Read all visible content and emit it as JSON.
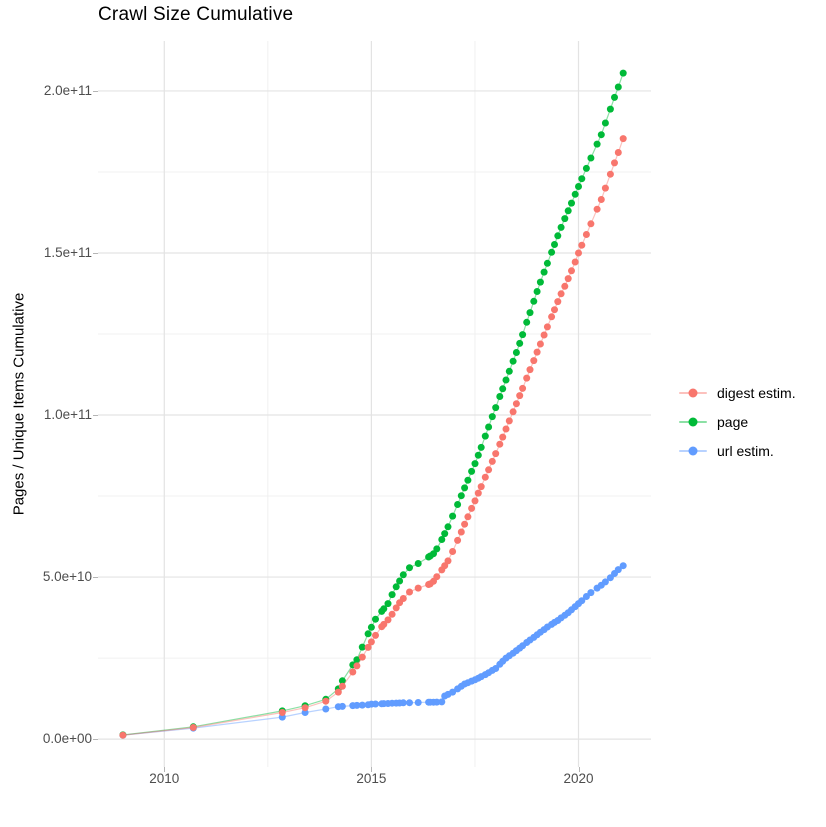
{
  "title": "Crawl Size Cumulative",
  "axes": {
    "y_title": "Pages / Unique Items Cumulative",
    "x_title": "",
    "x_ticks": [
      {
        "v": 2010,
        "label": "2010"
      },
      {
        "v": 2015,
        "label": "2015"
      },
      {
        "v": 2020,
        "label": "2020"
      }
    ],
    "x_minor": [
      2012.5,
      2017.5
    ],
    "y_ticks": [
      {
        "v": 0,
        "label": "0.0e+00"
      },
      {
        "v": 50,
        "label": "5.0e+10"
      },
      {
        "v": 100,
        "label": "1.0e+11"
      },
      {
        "v": 150,
        "label": "1.5e+11"
      },
      {
        "v": 200,
        "label": "2.0e+11"
      }
    ],
    "y_minor": [
      25,
      75,
      125,
      175
    ]
  },
  "colors": {
    "grid_major": "#e3e3e3",
    "grid_minor": "#f0f0f0",
    "tick": "#b5b5b5",
    "tick_text": "#4d4d4d",
    "text": "#000000"
  },
  "chart_data": {
    "type": "scatter",
    "connected": true,
    "title": "Crawl Size Cumulative",
    "xlabel": "",
    "ylabel": "Pages / Unique Items Cumulative",
    "grid": true,
    "legend_position": "right",
    "xlim": [
      2008.4,
      2021.75
    ],
    "ylim": [
      -8.6,
      215.4
    ],
    "y_unit": "1e9 (values below are billions; axis shows 0.0e+00 to 2.0e+11)",
    "series": [
      {
        "name": "digest estim.",
        "color": "#F8766D",
        "points": [
          [
            2009.0,
            1.2
          ],
          [
            2010.7,
            3.6
          ],
          [
            2012.85,
            8.2
          ],
          [
            2013.4,
            9.7
          ],
          [
            2013.9,
            11.7
          ],
          [
            2014.2,
            14.5
          ],
          [
            2014.3,
            16.3
          ],
          [
            2014.55,
            20.7
          ],
          [
            2014.65,
            22.6
          ],
          [
            2014.78,
            25.3
          ],
          [
            2014.92,
            28.3
          ],
          [
            2015.0,
            30.0
          ],
          [
            2015.1,
            32.0
          ],
          [
            2015.25,
            34.7
          ],
          [
            2015.3,
            35.4
          ],
          [
            2015.4,
            36.8
          ],
          [
            2015.5,
            38.5
          ],
          [
            2015.6,
            40.5
          ],
          [
            2015.68,
            42.1
          ],
          [
            2015.77,
            43.4
          ],
          [
            2015.92,
            45.4
          ],
          [
            2016.13,
            46.6
          ],
          [
            2016.38,
            47.7
          ],
          [
            2016.42,
            47.9
          ],
          [
            2016.5,
            48.7
          ],
          [
            2016.58,
            50.1
          ],
          [
            2016.7,
            52.2
          ],
          [
            2016.77,
            53.5
          ],
          [
            2016.85,
            55.0
          ],
          [
            2016.96,
            57.9
          ],
          [
            2017.08,
            61.3
          ],
          [
            2017.17,
            63.9
          ],
          [
            2017.25,
            66.3
          ],
          [
            2017.33,
            68.6
          ],
          [
            2017.42,
            71.2
          ],
          [
            2017.5,
            73.5
          ],
          [
            2017.58,
            75.9
          ],
          [
            2017.65,
            77.9
          ],
          [
            2017.75,
            80.8
          ],
          [
            2017.83,
            83.1
          ],
          [
            2017.92,
            85.7
          ],
          [
            2018.0,
            88.1
          ],
          [
            2018.1,
            91.0
          ],
          [
            2018.17,
            93.2
          ],
          [
            2018.25,
            95.7
          ],
          [
            2018.33,
            98.2
          ],
          [
            2018.42,
            101.0
          ],
          [
            2018.5,
            103.5
          ],
          [
            2018.58,
            106.0
          ],
          [
            2018.65,
            108.2
          ],
          [
            2018.75,
            111.4
          ],
          [
            2018.83,
            114.0
          ],
          [
            2018.92,
            116.8
          ],
          [
            2019.0,
            119.4
          ],
          [
            2019.08,
            121.9
          ],
          [
            2019.17,
            124.7
          ],
          [
            2019.25,
            127.2
          ],
          [
            2019.35,
            130.3
          ],
          [
            2019.42,
            132.5
          ],
          [
            2019.5,
            135.0
          ],
          [
            2019.58,
            137.4
          ],
          [
            2019.67,
            139.7
          ],
          [
            2019.75,
            142.1
          ],
          [
            2019.83,
            144.5
          ],
          [
            2019.92,
            147.2
          ],
          [
            2020.0,
            150.0
          ],
          [
            2020.08,
            152.4
          ],
          [
            2020.19,
            155.7
          ],
          [
            2020.3,
            159.0
          ],
          [
            2020.45,
            163.5
          ],
          [
            2020.55,
            166.5
          ],
          [
            2020.65,
            170.0
          ],
          [
            2020.77,
            174.3
          ],
          [
            2020.87,
            177.8
          ],
          [
            2020.96,
            181.0
          ],
          [
            2021.08,
            185.3
          ]
        ]
      },
      {
        "name": "page",
        "color": "#00BA38",
        "points": [
          [
            2009.0,
            1.3
          ],
          [
            2010.7,
            3.8
          ],
          [
            2012.85,
            8.7
          ],
          [
            2013.4,
            10.3
          ],
          [
            2013.9,
            12.3
          ],
          [
            2014.2,
            15.5
          ],
          [
            2014.3,
            18.0
          ],
          [
            2014.55,
            22.9
          ],
          [
            2014.65,
            24.5
          ],
          [
            2014.78,
            28.4
          ],
          [
            2014.92,
            32.5
          ],
          [
            2015.0,
            34.5
          ],
          [
            2015.1,
            37.0
          ],
          [
            2015.25,
            39.4
          ],
          [
            2015.3,
            40.2
          ],
          [
            2015.4,
            41.8
          ],
          [
            2015.5,
            44.6
          ],
          [
            2015.6,
            47.0
          ],
          [
            2015.68,
            48.8
          ],
          [
            2015.77,
            50.7
          ],
          [
            2015.92,
            52.9
          ],
          [
            2016.13,
            54.2
          ],
          [
            2016.38,
            56.2
          ],
          [
            2016.42,
            56.5
          ],
          [
            2016.5,
            57.2
          ],
          [
            2016.58,
            58.7
          ],
          [
            2016.7,
            61.6
          ],
          [
            2016.77,
            63.4
          ],
          [
            2016.85,
            65.5
          ],
          [
            2016.96,
            68.8
          ],
          [
            2017.08,
            72.4
          ],
          [
            2017.17,
            75.1
          ],
          [
            2017.25,
            77.5
          ],
          [
            2017.33,
            79.9
          ],
          [
            2017.42,
            82.6
          ],
          [
            2017.5,
            85.0
          ],
          [
            2017.58,
            87.6
          ],
          [
            2017.65,
            90.0
          ],
          [
            2017.75,
            93.5
          ],
          [
            2017.83,
            96.3
          ],
          [
            2017.92,
            99.5
          ],
          [
            2018.0,
            102.3
          ],
          [
            2018.1,
            105.7
          ],
          [
            2018.17,
            108.1
          ],
          [
            2018.25,
            110.8
          ],
          [
            2018.33,
            113.5
          ],
          [
            2018.42,
            116.6
          ],
          [
            2018.5,
            119.3
          ],
          [
            2018.58,
            122.1
          ],
          [
            2018.65,
            124.8
          ],
          [
            2018.75,
            128.6
          ],
          [
            2018.83,
            131.6
          ],
          [
            2018.92,
            135.1
          ],
          [
            2019.0,
            138.1
          ],
          [
            2019.08,
            141.0
          ],
          [
            2019.17,
            144.1
          ],
          [
            2019.25,
            146.8
          ],
          [
            2019.35,
            150.2
          ],
          [
            2019.42,
            152.6
          ],
          [
            2019.5,
            155.3
          ],
          [
            2019.58,
            157.9
          ],
          [
            2019.67,
            160.6
          ],
          [
            2019.75,
            163.0
          ],
          [
            2019.83,
            165.4
          ],
          [
            2019.92,
            168.1
          ],
          [
            2020.0,
            170.5
          ],
          [
            2020.08,
            172.9
          ],
          [
            2020.19,
            176.1
          ],
          [
            2020.3,
            179.3
          ],
          [
            2020.45,
            183.6
          ],
          [
            2020.55,
            186.5
          ],
          [
            2020.65,
            190.1
          ],
          [
            2020.77,
            194.4
          ],
          [
            2020.87,
            198.0
          ],
          [
            2020.96,
            201.2
          ],
          [
            2021.08,
            205.5
          ]
        ]
      },
      {
        "name": "url estim.",
        "color": "#619CFF",
        "points": [
          [
            2009.0,
            1.2
          ],
          [
            2010.7,
            3.4
          ],
          [
            2012.85,
            6.8
          ],
          [
            2013.4,
            8.2
          ],
          [
            2013.9,
            9.3
          ],
          [
            2014.2,
            10.0
          ],
          [
            2014.3,
            10.1
          ],
          [
            2014.55,
            10.35
          ],
          [
            2014.65,
            10.4
          ],
          [
            2014.78,
            10.5
          ],
          [
            2014.92,
            10.6
          ],
          [
            2015.0,
            10.8
          ],
          [
            2015.1,
            10.85
          ],
          [
            2015.25,
            10.9
          ],
          [
            2015.3,
            10.95
          ],
          [
            2015.4,
            11.0
          ],
          [
            2015.5,
            11.1
          ],
          [
            2015.6,
            11.12
          ],
          [
            2015.68,
            11.15
          ],
          [
            2015.77,
            11.2
          ],
          [
            2015.92,
            11.25
          ],
          [
            2016.13,
            11.3
          ],
          [
            2016.38,
            11.38
          ],
          [
            2016.42,
            11.4
          ],
          [
            2016.5,
            11.4
          ],
          [
            2016.58,
            11.42
          ],
          [
            2016.7,
            11.5
          ],
          [
            2016.77,
            13.3
          ],
          [
            2016.85,
            13.8
          ],
          [
            2016.96,
            14.5
          ],
          [
            2017.08,
            15.5
          ],
          [
            2017.17,
            16.3
          ],
          [
            2017.25,
            17.0
          ],
          [
            2017.33,
            17.4
          ],
          [
            2017.42,
            17.9
          ],
          [
            2017.5,
            18.3
          ],
          [
            2017.58,
            18.8
          ],
          [
            2017.65,
            19.3
          ],
          [
            2017.75,
            19.9
          ],
          [
            2017.83,
            20.5
          ],
          [
            2017.92,
            21.2
          ],
          [
            2018.0,
            21.8
          ],
          [
            2018.1,
            23.1
          ],
          [
            2018.17,
            24.0
          ],
          [
            2018.25,
            25.0
          ],
          [
            2018.33,
            25.7
          ],
          [
            2018.42,
            26.5
          ],
          [
            2018.5,
            27.3
          ],
          [
            2018.58,
            28.1
          ],
          [
            2018.65,
            28.8
          ],
          [
            2018.75,
            29.8
          ],
          [
            2018.83,
            30.6
          ],
          [
            2018.92,
            31.4
          ],
          [
            2019.0,
            32.2
          ],
          [
            2019.08,
            33.0
          ],
          [
            2019.17,
            33.8
          ],
          [
            2019.25,
            34.6
          ],
          [
            2019.35,
            35.4
          ],
          [
            2019.42,
            36.0
          ],
          [
            2019.5,
            36.6
          ],
          [
            2019.58,
            37.4
          ],
          [
            2019.67,
            38.2
          ],
          [
            2019.75,
            39.0
          ],
          [
            2019.83,
            39.9
          ],
          [
            2019.92,
            40.9
          ],
          [
            2020.0,
            41.8
          ],
          [
            2020.08,
            42.7
          ],
          [
            2020.19,
            44.0
          ],
          [
            2020.3,
            45.2
          ],
          [
            2020.45,
            46.6
          ],
          [
            2020.55,
            47.5
          ],
          [
            2020.65,
            48.5
          ],
          [
            2020.77,
            49.8
          ],
          [
            2020.87,
            51.1
          ],
          [
            2020.96,
            52.3
          ],
          [
            2021.08,
            53.5
          ]
        ]
      }
    ]
  }
}
